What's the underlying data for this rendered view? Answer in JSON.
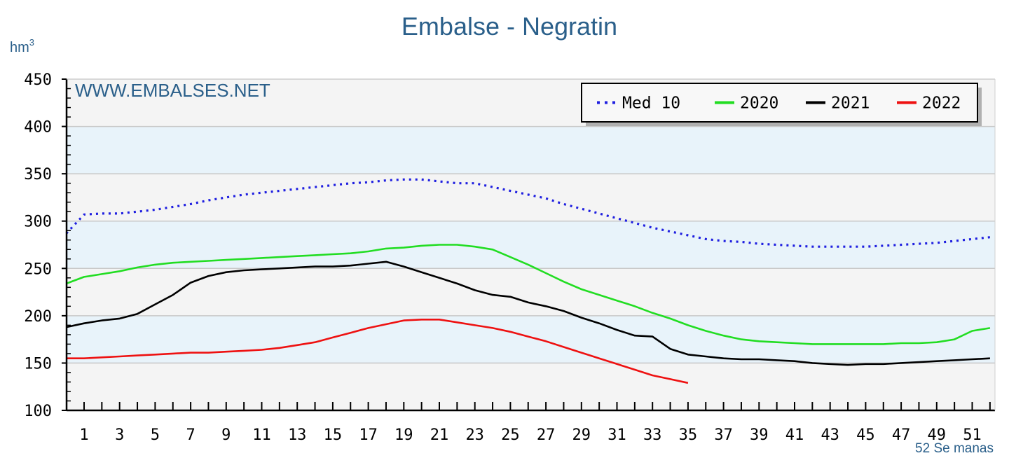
{
  "chart_data": {
    "type": "line",
    "title": "Embalse - Negratin",
    "ylabel": "hm",
    "ylabel_sup": "3",
    "xlabel": "52 Se manas",
    "watermark": "WWW.EMBALSES.NET",
    "ylim": [
      100,
      450
    ],
    "xlim": [
      0,
      52
    ],
    "yticks": [
      100,
      150,
      200,
      250,
      300,
      350,
      400,
      450
    ],
    "xticks": [
      1,
      3,
      5,
      7,
      9,
      11,
      13,
      15,
      17,
      19,
      21,
      23,
      25,
      27,
      29,
      31,
      33,
      35,
      37,
      39,
      41,
      43,
      45,
      47,
      49,
      51
    ],
    "bands": [
      [
        150,
        200
      ],
      [
        250,
        300
      ],
      [
        350,
        400
      ]
    ],
    "legend_position": "top-right",
    "series": [
      {
        "name": "Med 10",
        "color": "#1f1fe0",
        "style": "dotted",
        "x": [
          0,
          1,
          2,
          3,
          4,
          5,
          6,
          7,
          8,
          9,
          10,
          11,
          12,
          13,
          14,
          15,
          16,
          17,
          18,
          19,
          20,
          21,
          22,
          23,
          24,
          25,
          26,
          27,
          28,
          29,
          30,
          31,
          32,
          33,
          34,
          35,
          36,
          37,
          38,
          39,
          40,
          41,
          42,
          43,
          44,
          45,
          46,
          47,
          48,
          49,
          50,
          51,
          52
        ],
        "values": [
          287,
          307,
          308,
          308,
          310,
          312,
          315,
          318,
          322,
          325,
          328,
          330,
          332,
          334,
          336,
          338,
          340,
          341,
          343,
          344,
          344,
          342,
          340,
          340,
          336,
          332,
          328,
          324,
          318,
          313,
          308,
          303,
          298,
          293,
          289,
          285,
          281,
          279,
          278,
          276,
          275,
          274,
          273,
          273,
          273,
          273,
          274,
          275,
          276,
          277,
          279,
          281,
          283
        ]
      },
      {
        "name": "2020",
        "color": "#22dd22",
        "style": "solid",
        "x": [
          0,
          1,
          2,
          3,
          4,
          5,
          6,
          7,
          8,
          9,
          10,
          11,
          12,
          13,
          14,
          15,
          16,
          17,
          18,
          19,
          20,
          21,
          22,
          23,
          24,
          25,
          26,
          27,
          28,
          29,
          30,
          31,
          32,
          33,
          34,
          35,
          36,
          37,
          38,
          39,
          40,
          41,
          42,
          43,
          44,
          45,
          46,
          47,
          48,
          49,
          50,
          51,
          52
        ],
        "values": [
          234,
          241,
          244,
          247,
          251,
          254,
          256,
          257,
          258,
          259,
          260,
          261,
          262,
          263,
          264,
          265,
          266,
          268,
          271,
          272,
          274,
          275,
          275,
          273,
          270,
          262,
          254,
          245,
          236,
          228,
          222,
          216,
          210,
          203,
          197,
          190,
          184,
          179,
          175,
          173,
          172,
          171,
          170,
          170,
          170,
          170,
          170,
          171,
          171,
          172,
          175,
          184,
          187
        ]
      },
      {
        "name": "2021",
        "color": "#000000",
        "style": "solid",
        "x": [
          0,
          1,
          2,
          3,
          4,
          5,
          6,
          7,
          8,
          9,
          10,
          11,
          12,
          13,
          14,
          15,
          16,
          17,
          18,
          19,
          20,
          21,
          22,
          23,
          24,
          25,
          26,
          27,
          28,
          29,
          30,
          31,
          32,
          33,
          34,
          35,
          36,
          37,
          38,
          39,
          40,
          41,
          42,
          43,
          44,
          45,
          46,
          47,
          48,
          49,
          50,
          51,
          52
        ],
        "values": [
          188,
          192,
          195,
          197,
          202,
          212,
          222,
          235,
          242,
          246,
          248,
          249,
          250,
          251,
          252,
          252,
          253,
          255,
          257,
          252,
          246,
          240,
          234,
          227,
          222,
          220,
          214,
          210,
          205,
          198,
          192,
          185,
          179,
          178,
          165,
          159,
          157,
          155,
          154,
          154,
          153,
          152,
          150,
          149,
          148,
          149,
          149,
          150,
          151,
          152,
          153,
          154,
          155
        ]
      },
      {
        "name": "2022",
        "color": "#ee1111",
        "style": "solid",
        "x": [
          0,
          1,
          2,
          3,
          4,
          5,
          6,
          7,
          8,
          9,
          10,
          11,
          12,
          13,
          14,
          15,
          16,
          17,
          18,
          19,
          20,
          21,
          22,
          23,
          24,
          25,
          26,
          27,
          28,
          29,
          30,
          31,
          32,
          33,
          34,
          35
        ],
        "values": [
          155,
          155,
          156,
          157,
          158,
          159,
          160,
          161,
          161,
          162,
          163,
          164,
          166,
          169,
          172,
          177,
          182,
          187,
          191,
          195,
          196,
          196,
          193,
          190,
          187,
          183,
          178,
          173,
          167,
          161,
          155,
          149,
          143,
          137,
          133,
          129
        ]
      }
    ]
  }
}
